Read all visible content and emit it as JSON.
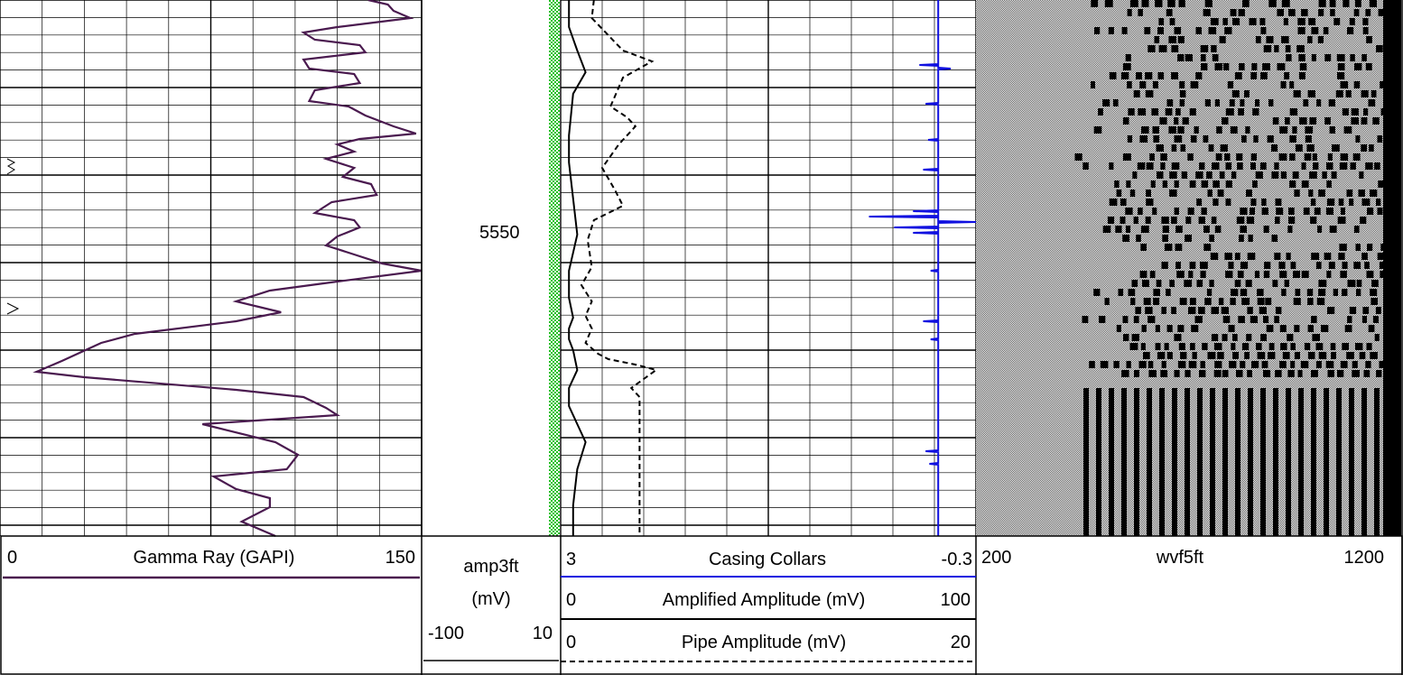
{
  "chart_data": [
    {
      "type": "line",
      "track": "gamma",
      "title": "Gamma Ray (GAPI)",
      "xlim": [
        0,
        150
      ],
      "scale_min_label": "0",
      "scale_max_label": "150",
      "color": "#4a1a4f",
      "series": [
        {
          "name": "Gamma Ray (GAPI)",
          "x": [
            131,
            138,
            140,
            146,
            120,
            108,
            112,
            128,
            130,
            108,
            110,
            126,
            128,
            112,
            110,
            124,
            130,
            140,
            148,
            128,
            120,
            126,
            116,
            126,
            122,
            132,
            134,
            118,
            112,
            126,
            128,
            120,
            116,
            126,
            136,
            150,
            120,
            96,
            84,
            100,
            84,
            48,
            36,
            22,
            13,
            30,
            84,
            108,
            116,
            120,
            72,
            98,
            106,
            102,
            76,
            84,
            96,
            96,
            86,
            98
          ],
          "depth": [
            0,
            5,
            12,
            20,
            30,
            36,
            44,
            50,
            58,
            66,
            76,
            82,
            92,
            100,
            112,
            118,
            128,
            140,
            148,
            154,
            160,
            168,
            176,
            186,
            196,
            204,
            216,
            224,
            236,
            244,
            252,
            262,
            272,
            282,
            292,
            300,
            312,
            322,
            334,
            346,
            356,
            370,
            380,
            400,
            412,
            418,
            432,
            440,
            452,
            460,
            470,
            490,
            504,
            520,
            528,
            542,
            552,
            562,
            578,
            594
          ]
        }
      ]
    },
    {
      "type": "line",
      "track": "amplitude",
      "depth_label": "5550",
      "series": [
        {
          "name": "Casing Collars",
          "xlim": [
            3,
            -0.3
          ],
          "scale_min_label": "3",
          "scale_max_label": "-0.3",
          "color": "#1010e0",
          "baseline": 0.0,
          "spikes": [
            {
              "depth": 72,
              "amp": 0.15
            },
            {
              "depth": 76,
              "amp": -0.1
            },
            {
              "depth": 115,
              "amp": 0.1
            },
            {
              "depth": 155,
              "amp": 0.08
            },
            {
              "depth": 188,
              "amp": 0.12
            },
            {
              "depth": 234,
              "amp": 0.2
            },
            {
              "depth": 240,
              "amp": 0.55
            },
            {
              "depth": 246,
              "amp": -0.3
            },
            {
              "depth": 252,
              "amp": 0.35
            },
            {
              "depth": 258,
              "amp": 0.2
            },
            {
              "depth": 300,
              "amp": 0.06
            },
            {
              "depth": 356,
              "amp": 0.12
            },
            {
              "depth": 376,
              "amp": 0.06
            },
            {
              "depth": 500,
              "amp": 0.1
            },
            {
              "depth": 514,
              "amp": 0.07
            }
          ]
        },
        {
          "name": "Amplified Amplitude (mV)",
          "xlim": [
            0,
            100
          ],
          "scale_min_label": "0",
          "scale_max_label": "100",
          "color": "#000000",
          "x": [
            2,
            2,
            4,
            6,
            3,
            2,
            2,
            3,
            4,
            2,
            2,
            3,
            2,
            2,
            3,
            4,
            2,
            2,
            4,
            6,
            4,
            3,
            3
          ],
          "depth": [
            0,
            30,
            56,
            80,
            104,
            150,
            180,
            220,
            260,
            300,
            330,
            352,
            364,
            376,
            388,
            410,
            430,
            450,
            470,
            490,
            520,
            560,
            594
          ]
        },
        {
          "name": "Pipe Amplitude (mV)",
          "xlim": [
            0,
            20
          ],
          "scale_min_label": "0",
          "scale_max_label": "20",
          "color": "#000000",
          "dashed": true,
          "x": [
            1.6,
            1.5,
            3.0,
            4.4,
            3.0,
            2.4,
            3.2,
            3.6,
            2.8,
            2.0,
            2.6,
            3.0,
            1.6,
            1.3,
            1.5,
            1.0,
            1.5,
            1.2,
            1.5,
            1.2,
            1.8,
            2.3,
            3.6,
            4.6,
            4.0,
            3.4,
            3.8,
            3.8,
            3.8
          ],
          "depth": [
            0,
            20,
            56,
            68,
            86,
            118,
            130,
            140,
            160,
            186,
            210,
            228,
            244,
            266,
            296,
            316,
            334,
            350,
            364,
            380,
            392,
            398,
            404,
            410,
            420,
            430,
            440,
            500,
            594
          ]
        }
      ]
    },
    {
      "type": "heatmap",
      "track": "waveform",
      "title": "wvf5ft",
      "xlim": [
        200,
        1200
      ],
      "scale_min_label": "200",
      "scale_max_label": "1200",
      "colormap": [
        "#000000",
        "#ffffff"
      ]
    }
  ],
  "legend": {
    "gamma": {
      "min": "0",
      "title": "Gamma Ray (GAPI)",
      "max": "150"
    },
    "amp3ft": {
      "line1": "amp3ft",
      "line2": "(mV)",
      "min": "-100",
      "max": "10"
    },
    "collars": {
      "min": "3",
      "title": "Casing Collars",
      "max": "-0.3"
    },
    "amplified": {
      "min": "0",
      "title": "Amplified Amplitude (mV)",
      "max": "100"
    },
    "pipe": {
      "min": "0",
      "title": "Pipe Amplitude (mV)",
      "max": "20"
    },
    "wvf": {
      "min": "200",
      "title": "wvf5ft",
      "max": "1200"
    }
  }
}
